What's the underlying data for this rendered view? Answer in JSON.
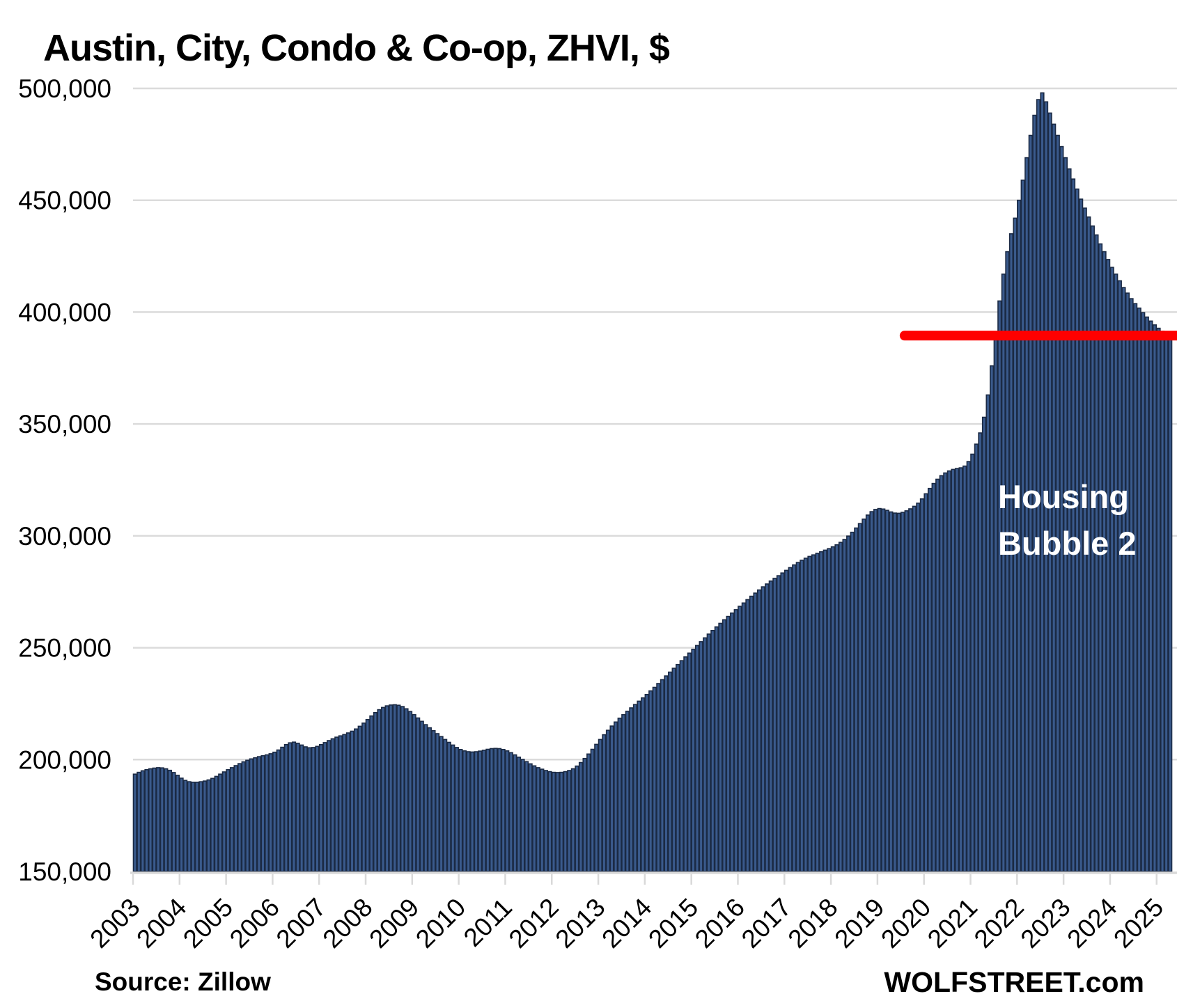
{
  "title": "Austin, City, Condo & Co-op, ZHVI, $",
  "source": "Source: Zillow",
  "watermark": "WOLFSTREET.com",
  "annotation": {
    "line1": "Housing",
    "line2": "Bubble 2"
  },
  "colors": {
    "bar_fill": "#3A5A8C",
    "bar_border": "#1B2A44",
    "gridline": "#DBDBDB",
    "axis_line": "#D9D9D9",
    "red_line": "#FF0000",
    "text": "#000000",
    "annotation_text": "#FFFFFF"
  },
  "chart_data": {
    "type": "bar",
    "title": "Austin, City, Condo & Co-op, ZHVI, $",
    "x_start": "2003-01",
    "x_end": "2025-04",
    "x_tick_labels": [
      "2003",
      "2004",
      "2005",
      "2006",
      "2007",
      "2008",
      "2009",
      "2010",
      "2011",
      "2012",
      "2013",
      "2014",
      "2015",
      "2016",
      "2017",
      "2018",
      "2019",
      "2020",
      "2021",
      "2022",
      "2023",
      "2024",
      "2025"
    ],
    "y_ticks": [
      150000,
      200000,
      250000,
      300000,
      350000,
      400000,
      450000,
      500000
    ],
    "y_tick_labels": [
      "150,000",
      "200,000",
      "250,000",
      "300,000",
      "350,000",
      "400,000",
      "450,000",
      "500,000"
    ],
    "ylim": [
      150000,
      500000
    ],
    "grid": "horizontal",
    "legend": "none",
    "red_line": {
      "value": 389500,
      "start": "2019-08"
    },
    "values": [
      193500,
      194300,
      195000,
      195500,
      195900,
      196200,
      196400,
      196300,
      195900,
      195200,
      194200,
      193000,
      191700,
      190700,
      190100,
      189900,
      189900,
      190100,
      190400,
      190900,
      191600,
      192500,
      193500,
      194500,
      195500,
      196400,
      197300,
      198200,
      199000,
      199700,
      200300,
      200800,
      201300,
      201700,
      202100,
      202600,
      203300,
      204300,
      205500,
      206700,
      207500,
      207800,
      207300,
      206500,
      205700,
      205300,
      205400,
      205900,
      206700,
      207600,
      208500,
      209300,
      210000,
      210600,
      211200,
      211900,
      212700,
      213700,
      214900,
      216300,
      217900,
      219500,
      221000,
      222300,
      223300,
      224000,
      224400,
      224500,
      224300,
      223700,
      222700,
      221500,
      220100,
      218600,
      217100,
      215600,
      214200,
      212900,
      211600,
      210300,
      209000,
      207700,
      206500,
      205400,
      204500,
      203900,
      203500,
      203400,
      203500,
      203800,
      204200,
      204600,
      204900,
      205000,
      204900,
      204500,
      203900,
      203100,
      202100,
      201100,
      200100,
      199100,
      198100,
      197200,
      196400,
      195700,
      195100,
      194600,
      194300,
      194200,
      194300,
      194600,
      195100,
      195900,
      197100,
      198700,
      200500,
      202500,
      204600,
      206800,
      209000,
      211100,
      213100,
      215000,
      216800,
      218500,
      220100,
      221600,
      223100,
      224600,
      226100,
      227600,
      229100,
      230700,
      232300,
      234000,
      235700,
      237400,
      239100,
      240800,
      242500,
      244200,
      245900,
      247600,
      249300,
      251000,
      252700,
      254400,
      256100,
      257700,
      259300,
      260900,
      262500,
      264000,
      265500,
      267000,
      268500,
      270000,
      271500,
      273000,
      274400,
      275800,
      277200,
      278500,
      279800,
      281000,
      282200,
      283400,
      284600,
      285800,
      287000,
      288100,
      289100,
      290000,
      290800,
      291500,
      292200,
      292900,
      293600,
      294300,
      295100,
      296000,
      297100,
      298400,
      299900,
      301600,
      303500,
      305500,
      307500,
      309300,
      310800,
      311800,
      312200,
      312000,
      311400,
      310700,
      310200,
      310100,
      310500,
      311200,
      312100,
      313200,
      314600,
      316500,
      318800,
      321200,
      323400,
      325300,
      326900,
      328100,
      329000,
      329700,
      330100,
      330400,
      331200,
      333200,
      336500,
      341000,
      346000,
      353000,
      363000,
      376000,
      391000,
      405000,
      417000,
      427000,
      435000,
      442000,
      450000,
      459000,
      469000,
      479000,
      488000,
      495000,
      498000,
      494000,
      489000,
      484000,
      479000,
      474000,
      469000,
      464000,
      459500,
      455000,
      450500,
      446500,
      442500,
      438500,
      434500,
      430500,
      427000,
      423500,
      420000,
      417000,
      414000,
      411000,
      408500,
      406000,
      403800,
      401800,
      399800,
      397800,
      396000,
      394300,
      392800,
      391500,
      390300,
      389400
    ]
  }
}
